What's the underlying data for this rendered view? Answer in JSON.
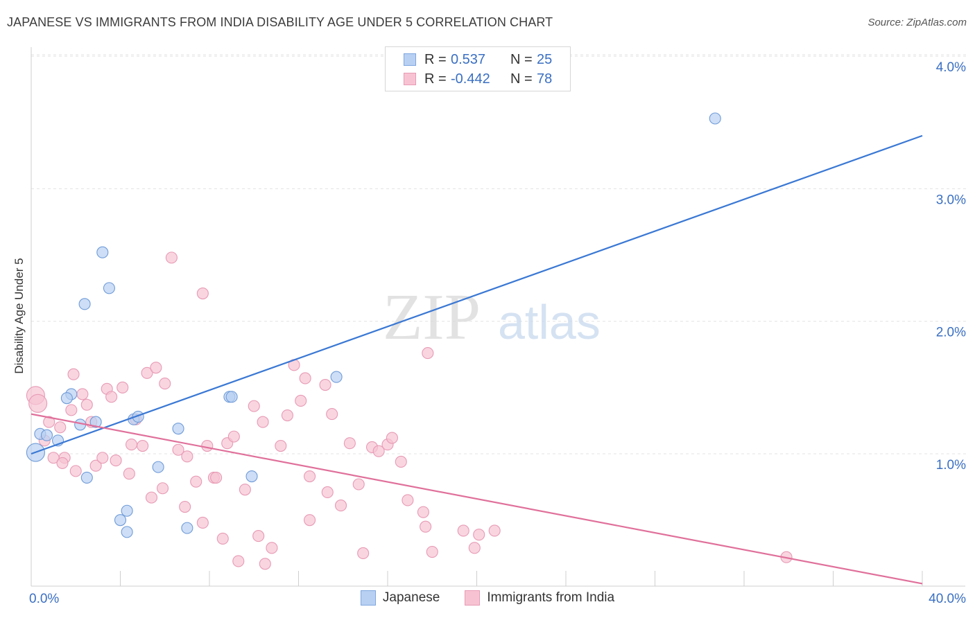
{
  "title": "JAPANESE VS IMMIGRANTS FROM INDIA DISABILITY AGE UNDER 5 CORRELATION CHART",
  "source": "Source: ZipAtlas.com",
  "watermark": {
    "zip": "ZIP",
    "atlas": "atlas"
  },
  "colors": {
    "blue": "#3a78d4",
    "blue_fill": "#b8d0f2",
    "pink": "#e0709a",
    "pink_fill": "#f7c3d3",
    "tick_text": "#3a6fc2"
  },
  "legend": {
    "rows": [
      {
        "r_label": "R =",
        "r_value": "0.537",
        "n_label": "N =",
        "n_value": "25"
      },
      {
        "r_label": "R =",
        "r_value": "-0.442",
        "n_label": "N =",
        "n_value": "78"
      }
    ]
  },
  "bottom_legend": {
    "japanese": "Japanese",
    "india": "Immigrants from India"
  },
  "chart_data": {
    "type": "scatter",
    "title": "JAPANESE VS IMMIGRANTS FROM INDIA DISABILITY AGE UNDER 5 CORRELATION CHART",
    "xlabel": "",
    "ylabel": "Disability Age Under 5",
    "xlim": [
      0,
      40
    ],
    "ylim": [
      0,
      4.15
    ],
    "x_tick_labels": {
      "left": "0.0%",
      "right": "40.0%"
    },
    "y_ticks": [
      {
        "value": 1,
        "label": "1.0%"
      },
      {
        "value": 2,
        "label": "2.0%"
      },
      {
        "value": 3,
        "label": "3.0%"
      },
      {
        "value": 4,
        "label": "4.0%"
      }
    ],
    "grid": "horizontal dashed",
    "legend_position": "top-center",
    "series": [
      {
        "name": "Japanese",
        "color": "#3a78d4",
        "trend": {
          "x": [
            0,
            40
          ],
          "y": [
            1.0,
            3.4
          ]
        },
        "points": [
          [
            0.2,
            1.01
          ],
          [
            0.4,
            1.15
          ],
          [
            0.7,
            1.14
          ],
          [
            1.2,
            1.1
          ],
          [
            1.8,
            1.45
          ],
          [
            1.6,
            1.42
          ],
          [
            2.2,
            1.22
          ],
          [
            2.4,
            2.13
          ],
          [
            2.5,
            0.82
          ],
          [
            2.9,
            1.24
          ],
          [
            3.2,
            2.52
          ],
          [
            3.5,
            2.25
          ],
          [
            4.0,
            0.5
          ],
          [
            4.3,
            0.41
          ],
          [
            4.3,
            0.57
          ],
          [
            4.6,
            1.26
          ],
          [
            4.8,
            1.28
          ],
          [
            5.7,
            0.9
          ],
          [
            6.6,
            1.19
          ],
          [
            7.0,
            0.44
          ],
          [
            8.9,
            1.43
          ],
          [
            9.0,
            1.43
          ],
          [
            9.9,
            0.83
          ],
          [
            13.7,
            1.58
          ],
          [
            30.7,
            3.53
          ]
        ]
      },
      {
        "name": "Immigrants from India",
        "color": "#e0709a",
        "trend": {
          "x": [
            0,
            40
          ],
          "y": [
            1.3,
            0.02
          ]
        },
        "points": [
          [
            0.2,
            1.44
          ],
          [
            0.3,
            1.38
          ],
          [
            0.6,
            1.1
          ],
          [
            0.8,
            1.24
          ],
          [
            1.0,
            0.97
          ],
          [
            1.3,
            1.2
          ],
          [
            1.5,
            0.97
          ],
          [
            1.9,
            1.6
          ],
          [
            1.8,
            1.33
          ],
          [
            2.0,
            0.87
          ],
          [
            2.3,
            1.45
          ],
          [
            2.5,
            1.37
          ],
          [
            2.7,
            1.24
          ],
          [
            2.9,
            0.91
          ],
          [
            3.2,
            0.97
          ],
          [
            3.4,
            1.49
          ],
          [
            3.6,
            1.43
          ],
          [
            3.8,
            0.95
          ],
          [
            4.1,
            1.5
          ],
          [
            4.4,
            0.85
          ],
          [
            4.5,
            1.07
          ],
          [
            4.7,
            1.26
          ],
          [
            5.0,
            1.06
          ],
          [
            5.2,
            1.61
          ],
          [
            5.4,
            0.67
          ],
          [
            5.6,
            1.65
          ],
          [
            5.9,
            0.74
          ],
          [
            6.0,
            1.53
          ],
          [
            6.3,
            2.48
          ],
          [
            6.6,
            1.03
          ],
          [
            6.9,
            0.6
          ],
          [
            7.0,
            0.98
          ],
          [
            7.4,
            0.79
          ],
          [
            7.7,
            0.48
          ],
          [
            7.7,
            2.21
          ],
          [
            7.9,
            1.06
          ],
          [
            8.2,
            0.82
          ],
          [
            8.3,
            0.82
          ],
          [
            8.6,
            0.36
          ],
          [
            8.8,
            1.08
          ],
          [
            9.1,
            1.13
          ],
          [
            9.3,
            0.19
          ],
          [
            9.6,
            0.73
          ],
          [
            10.0,
            1.36
          ],
          [
            10.2,
            0.38
          ],
          [
            10.4,
            1.24
          ],
          [
            10.5,
            0.17
          ],
          [
            10.8,
            0.29
          ],
          [
            11.2,
            1.06
          ],
          [
            11.5,
            1.29
          ],
          [
            11.8,
            1.67
          ],
          [
            12.1,
            1.4
          ],
          [
            12.3,
            1.57
          ],
          [
            12.5,
            0.5
          ],
          [
            12.5,
            0.83
          ],
          [
            13.2,
            1.52
          ],
          [
            13.3,
            0.71
          ],
          [
            13.5,
            1.3
          ],
          [
            13.9,
            0.61
          ],
          [
            14.3,
            1.08
          ],
          [
            14.7,
            0.77
          ],
          [
            14.9,
            0.25
          ],
          [
            15.3,
            1.05
          ],
          [
            15.6,
            1.02
          ],
          [
            16.0,
            1.07
          ],
          [
            16.2,
            1.12
          ],
          [
            16.6,
            0.94
          ],
          [
            16.9,
            0.65
          ],
          [
            17.6,
            0.56
          ],
          [
            17.7,
            0.45
          ],
          [
            17.8,
            1.76
          ],
          [
            18.0,
            0.26
          ],
          [
            19.4,
            0.42
          ],
          [
            19.9,
            0.29
          ],
          [
            20.1,
            0.39
          ],
          [
            20.8,
            0.42
          ],
          [
            33.9,
            0.22
          ],
          [
            1.4,
            0.93
          ]
        ]
      }
    ]
  }
}
